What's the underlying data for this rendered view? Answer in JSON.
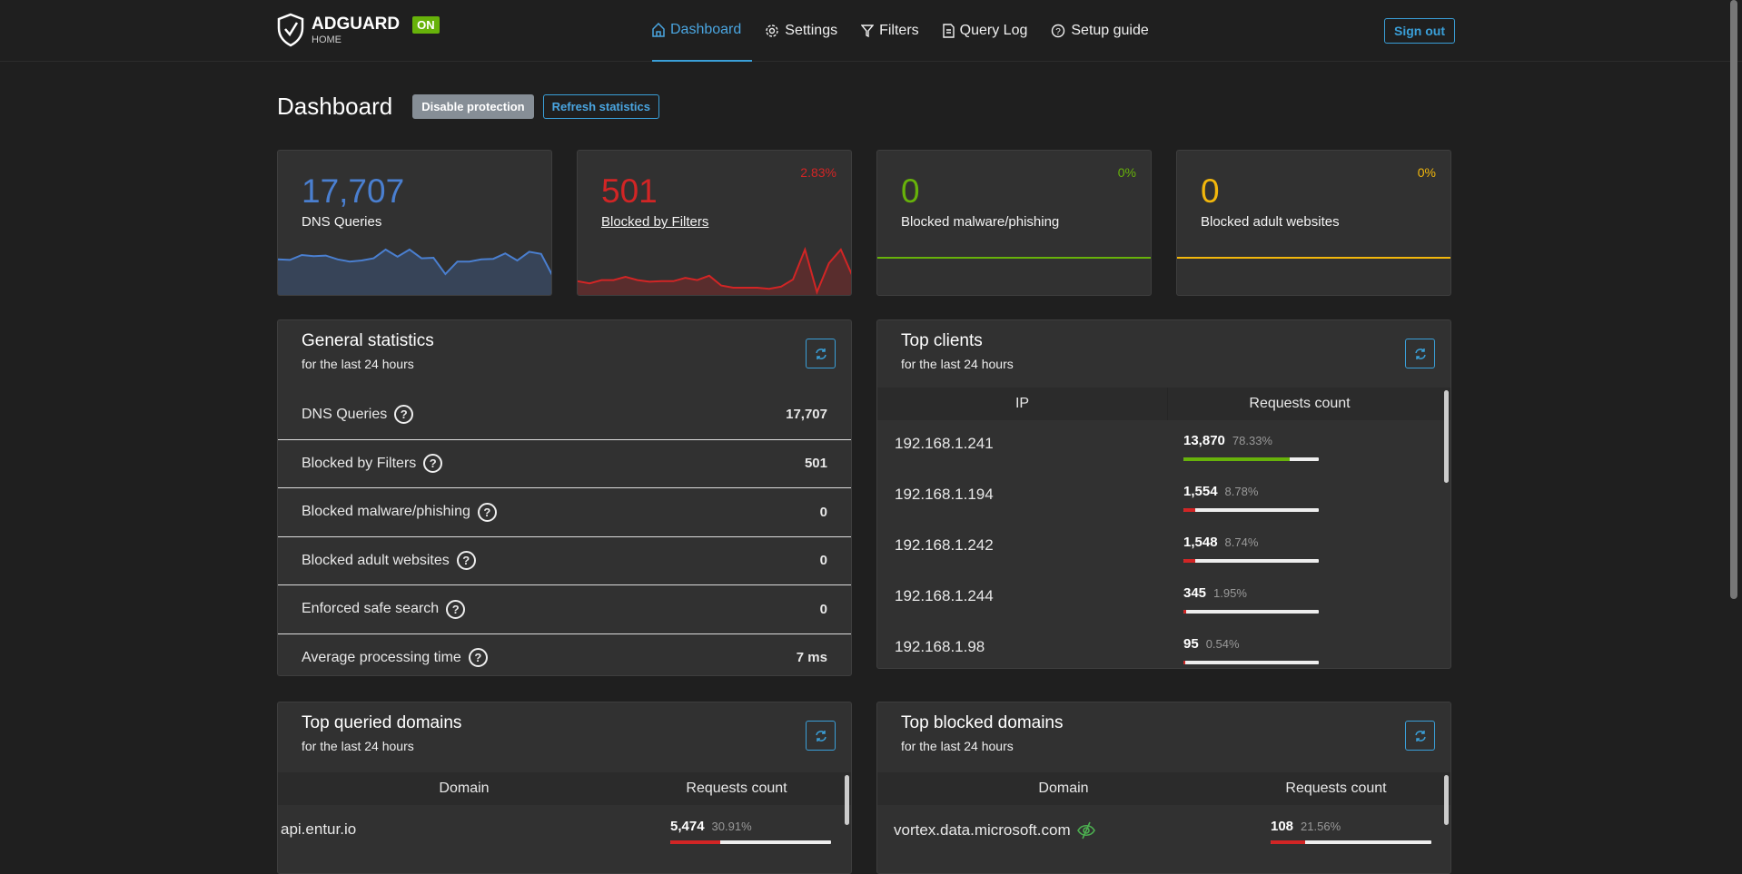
{
  "header": {
    "brand": "ADGUARD",
    "brand_sub": "HOME",
    "status_badge": "ON",
    "nav": [
      {
        "label": "Dashboard",
        "icon": "home-icon",
        "active": true
      },
      {
        "label": "Settings",
        "icon": "gear-icon"
      },
      {
        "label": "Filters",
        "icon": "filter-icon"
      },
      {
        "label": "Query Log",
        "icon": "document-icon"
      },
      {
        "label": "Setup guide",
        "icon": "help-icon"
      }
    ],
    "sign_out": "Sign out"
  },
  "page": {
    "title": "Dashboard",
    "disable_protection": "Disable protection",
    "refresh_statistics": "Refresh statistics"
  },
  "colors": {
    "blue": "#4a7fd0",
    "red": "#d22525",
    "green": "#67b20a",
    "yellow": "#f2b70c",
    "accent": "#3a9fd8"
  },
  "cards": [
    {
      "value": "17,707",
      "label": "DNS Queries",
      "percent": "",
      "color": "#4a7fd0",
      "sparkline": [
        62,
        61,
        70,
        68,
        69,
        62,
        58,
        60,
        64,
        80,
        67,
        80,
        64,
        65,
        35,
        58,
        58,
        62,
        63,
        73,
        60,
        76,
        72,
        30
      ]
    },
    {
      "value": "501",
      "label": "Blocked by Filters",
      "percent": "2.83%",
      "color": "#d22525",
      "sparkline": [
        22,
        18,
        24,
        24,
        30,
        24,
        21,
        22,
        22,
        28,
        24,
        32,
        14,
        10,
        10,
        10,
        8,
        12,
        25,
        80,
        2,
        55,
        80,
        30
      ]
    },
    {
      "value": "0",
      "label": "Blocked malware/phishing",
      "percent": "0%",
      "color": "#67b20a",
      "sparkline": [
        0,
        0
      ]
    },
    {
      "value": "0",
      "label": "Blocked adult websites",
      "percent": "0%",
      "color": "#f2b70c",
      "sparkline": [
        0,
        0
      ]
    }
  ],
  "general": {
    "title": "General statistics",
    "subtitle": "for the last 24 hours",
    "rows": [
      {
        "label": "DNS Queries",
        "value": "17,707"
      },
      {
        "label": "Blocked by Filters",
        "value": "501"
      },
      {
        "label": "Blocked malware/phishing",
        "value": "0"
      },
      {
        "label": "Blocked adult websites",
        "value": "0"
      },
      {
        "label": "Enforced safe search",
        "value": "0"
      },
      {
        "label": "Average processing time",
        "value": "7 ms"
      }
    ]
  },
  "clients": {
    "title": "Top clients",
    "subtitle": "for the last 24 hours",
    "col_ip": "IP",
    "col_count": "Requests count",
    "rows": [
      {
        "ip": "192.168.1.241",
        "count": "13,870",
        "percent": "78.33%",
        "fill": 78.33,
        "color": "#67b20a"
      },
      {
        "ip": "192.168.1.194",
        "count": "1,554",
        "percent": "8.78%",
        "fill": 8.78,
        "color": "#d22525"
      },
      {
        "ip": "192.168.1.242",
        "count": "1,548",
        "percent": "8.74%",
        "fill": 8.74,
        "color": "#d22525"
      },
      {
        "ip": "192.168.1.244",
        "count": "345",
        "percent": "1.95%",
        "fill": 1.95,
        "color": "#d22525"
      },
      {
        "ip": "192.168.1.98",
        "count": "95",
        "percent": "0.54%",
        "fill": 0.54,
        "color": "#d22525"
      }
    ]
  },
  "queried": {
    "title": "Top queried domains",
    "subtitle": "for the last 24 hours",
    "col_domain": "Domain",
    "col_count": "Requests count",
    "rows": [
      {
        "domain": "api.entur.io",
        "count": "5,474",
        "percent": "30.91%",
        "fill": 30.91
      }
    ]
  },
  "blocked": {
    "title": "Top blocked domains",
    "subtitle": "for the last 24 hours",
    "col_domain": "Domain",
    "col_count": "Requests count",
    "rows": [
      {
        "domain": "vortex.data.microsoft.com",
        "count": "108",
        "percent": "21.56%",
        "fill": 21.56,
        "icon": "eye-off-icon"
      }
    ]
  }
}
